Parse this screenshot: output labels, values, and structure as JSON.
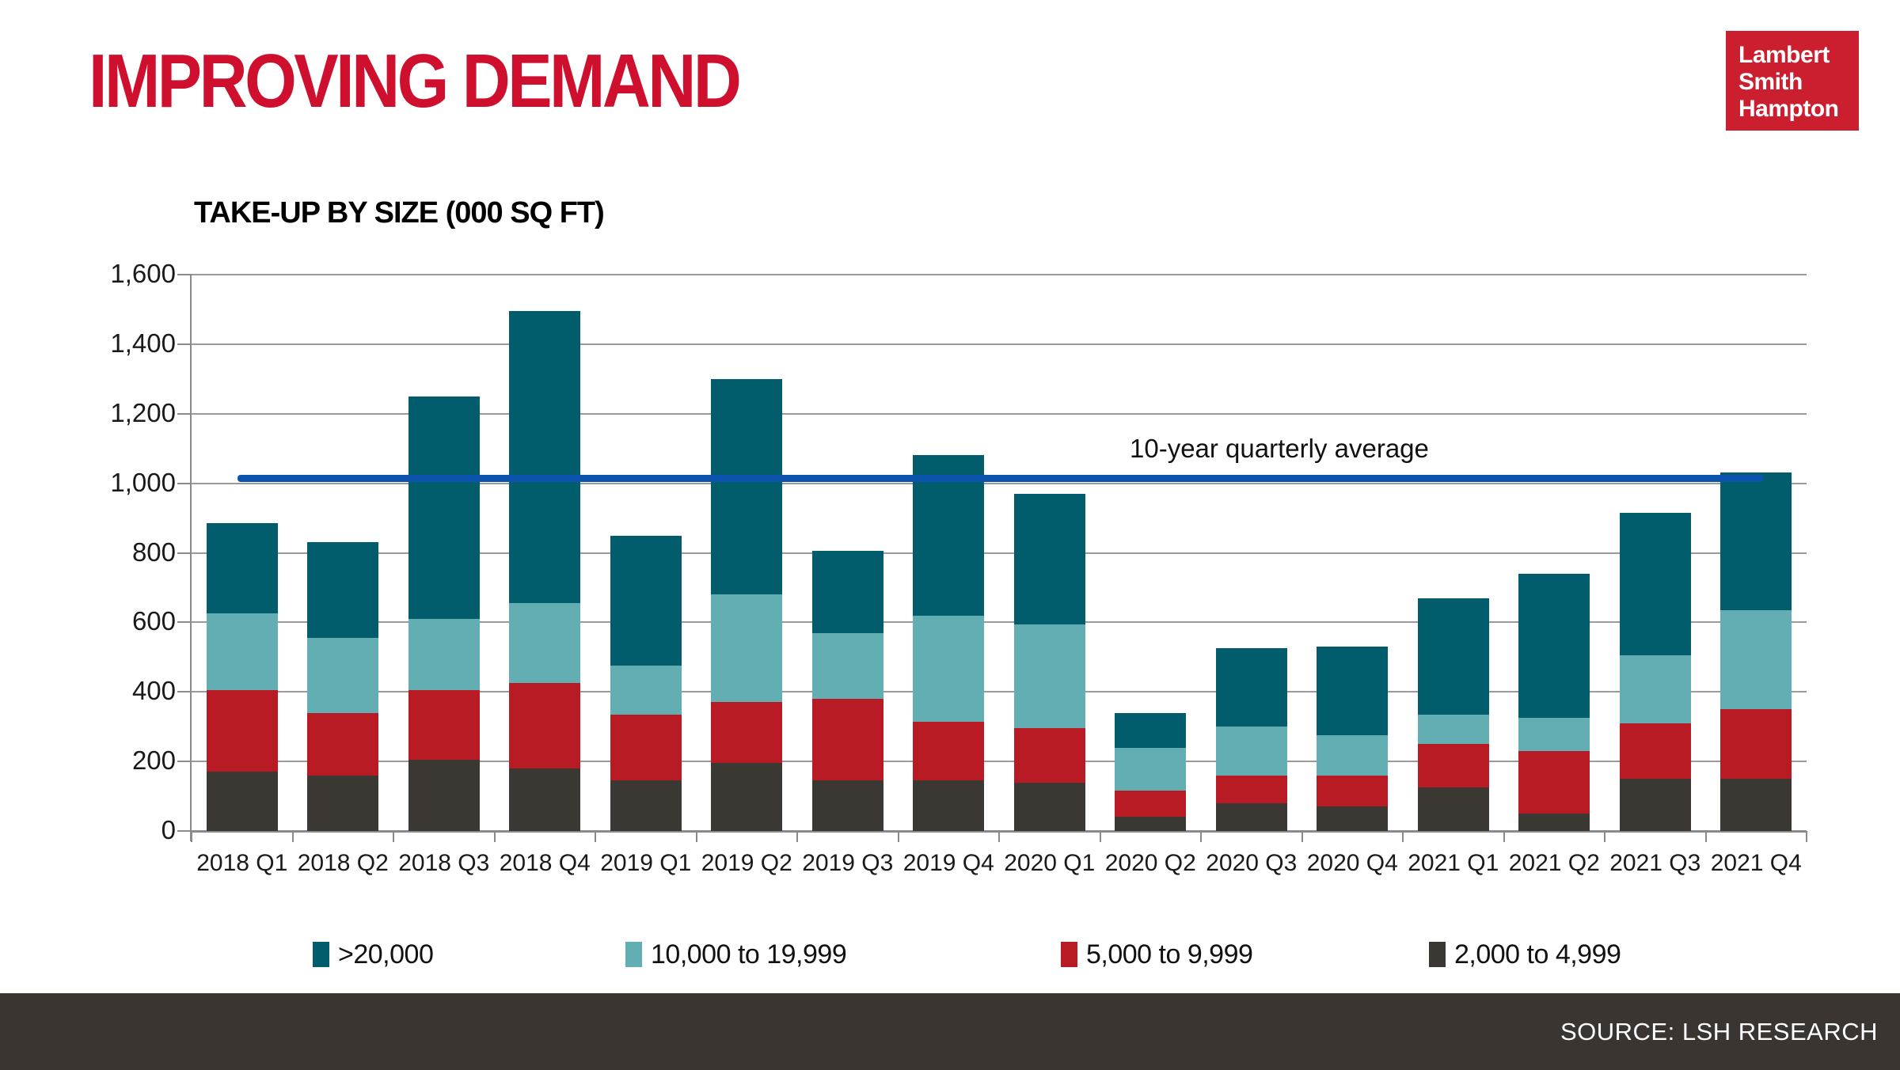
{
  "header": {
    "title": "IMPROVING DEMAND"
  },
  "logo": {
    "lines": [
      "Lambert",
      "Smith",
      "Hampton"
    ],
    "bg_color": "#CB1F30",
    "text_color": "#ffffff"
  },
  "chart": {
    "title": "TAKE-UP BY SIZE (000 SQ FT)"
  },
  "chart_data": {
    "type": "bar",
    "stacked": true,
    "title": "TAKE-UP BY SIZE (000 SQ FT)",
    "xlabel": "",
    "ylabel": "",
    "ylim": [
      0,
      1600
    ],
    "grid": true,
    "legend_position": "bottom",
    "y_ticks": [
      {
        "value": 0,
        "label": "0"
      },
      {
        "value": 200,
        "label": "200"
      },
      {
        "value": 400,
        "label": "400"
      },
      {
        "value": 600,
        "label": "600"
      },
      {
        "value": 800,
        "label": "800"
      },
      {
        "value": 1000,
        "label": "1,000"
      },
      {
        "value": 1200,
        "label": "1,200"
      },
      {
        "value": 1400,
        "label": "1,400"
      },
      {
        "value": 1600,
        "label": "1,600"
      }
    ],
    "categories": [
      "2018 Q1",
      "2018 Q2",
      "2018 Q3",
      "2018 Q4",
      "2019 Q1",
      "2019 Q2",
      "2019 Q3",
      "2019 Q4",
      "2020 Q1",
      "2020 Q2",
      "2020 Q3",
      "2020 Q4",
      "2021 Q1",
      "2021 Q2",
      "2021 Q3",
      "2021 Q4"
    ],
    "series": [
      {
        "name": ">20,000",
        "color": "#015D6C",
        "values": [
          260,
          275,
          640,
          840,
          375,
          620,
          235,
          460,
          375,
          100,
          225,
          255,
          335,
          415,
          410,
          395
        ]
      },
      {
        "name": "10,000 to 19,999",
        "color": "#63AEB3",
        "values": [
          220,
          215,
          205,
          230,
          140,
          310,
          190,
          305,
          300,
          125,
          140,
          115,
          85,
          95,
          195,
          285
        ]
      },
      {
        "name": "5,000 to 9,999",
        "color": "#B81B23",
        "values": [
          235,
          180,
          200,
          245,
          190,
          175,
          235,
          170,
          155,
          75,
          80,
          90,
          125,
          180,
          160,
          200
        ]
      },
      {
        "name": "2,000 to 4,999",
        "color": "#3B3733",
        "values": [
          170,
          160,
          205,
          180,
          145,
          195,
          145,
          145,
          140,
          40,
          80,
          70,
          125,
          50,
          150,
          150
        ]
      }
    ],
    "totals": [
      885,
      830,
      1250,
      1495,
      850,
      1300,
      805,
      1080,
      970,
      340,
      525,
      530,
      670,
      740,
      915,
      1030
    ],
    "average_line": {
      "value": 1015,
      "label": "10-year quarterly average",
      "color": "#0B53AD"
    }
  },
  "footer": {
    "source": "SOURCE: LSH RESEARCH"
  }
}
